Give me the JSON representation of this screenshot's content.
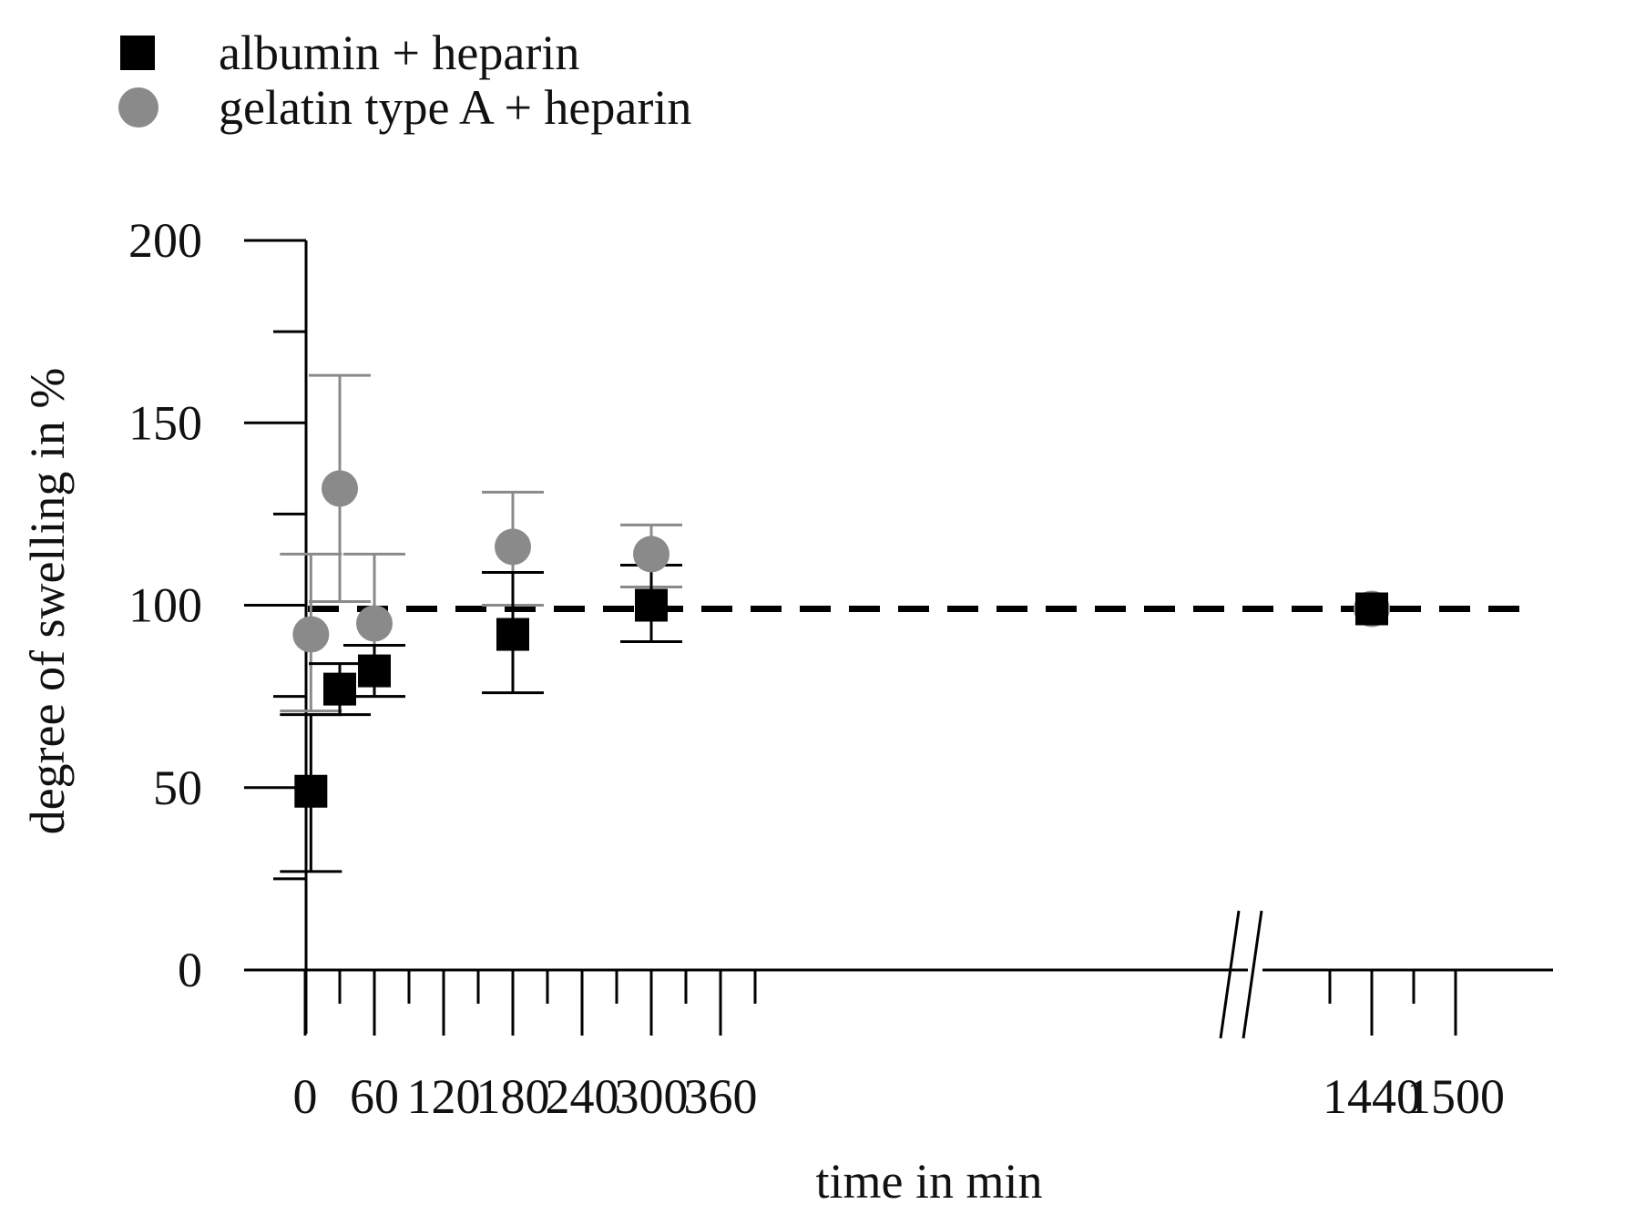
{
  "chart_data": {
    "type": "scatter",
    "title": "",
    "xlabel": "time in min",
    "ylabel": "degree of swelling in %",
    "ylim": [
      0,
      200
    ],
    "y_ticks_major": [
      0,
      50,
      100,
      150,
      200
    ],
    "y_ticks_minor": [
      25,
      75,
      125,
      175
    ],
    "x_segments": [
      {
        "range": [
          0,
          390
        ],
        "tick_labels": [
          "0",
          "60",
          "120",
          "180",
          "240",
          "300",
          "360"
        ],
        "tick_values": [
          0,
          60,
          120,
          180,
          240,
          300,
          360
        ],
        "minor_tick_values": [
          30,
          90,
          150,
          210,
          270,
          330,
          390
        ]
      },
      {
        "range": [
          1410,
          1500
        ],
        "tick_labels": [
          "1440",
          "1500"
        ],
        "tick_values": [
          1440,
          1500
        ],
        "minor_tick_values": [
          1410,
          1470
        ]
      }
    ],
    "axis_break": "//",
    "reference_line": {
      "y": 99,
      "style": "dashed",
      "color": "#000000"
    },
    "legend": {
      "position": "top-left"
    },
    "series": [
      {
        "name": "albumin + heparin",
        "marker": "square",
        "color": "#000000",
        "points": [
          {
            "x": 5,
            "y": 49,
            "err_low": 27,
            "err_high": 70
          },
          {
            "x": 30,
            "y": 77,
            "err_low": 70,
            "err_high": 84
          },
          {
            "x": 60,
            "y": 82,
            "err_low": 75,
            "err_high": 89
          },
          {
            "x": 180,
            "y": 92,
            "err_low": 76,
            "err_high": 109
          },
          {
            "x": 300,
            "y": 100,
            "err_low": 90,
            "err_high": 111
          },
          {
            "x": 1440,
            "y": 99,
            "err_low": 99,
            "err_high": 99
          }
        ]
      },
      {
        "name": "gelatin type A + heparin",
        "marker": "circle",
        "color": "#8a8a8a",
        "points": [
          {
            "x": 5,
            "y": 92,
            "err_low": 71,
            "err_high": 114
          },
          {
            "x": 30,
            "y": 132,
            "err_low": 101,
            "err_high": 163
          },
          {
            "x": 60,
            "y": 95,
            "err_low": 75,
            "err_high": 114
          },
          {
            "x": 180,
            "y": 116,
            "err_low": 100,
            "err_high": 131
          },
          {
            "x": 300,
            "y": 114,
            "err_low": 105,
            "err_high": 122
          },
          {
            "x": 1440,
            "y": 99,
            "err_low": 99,
            "err_high": 99
          }
        ]
      }
    ]
  }
}
